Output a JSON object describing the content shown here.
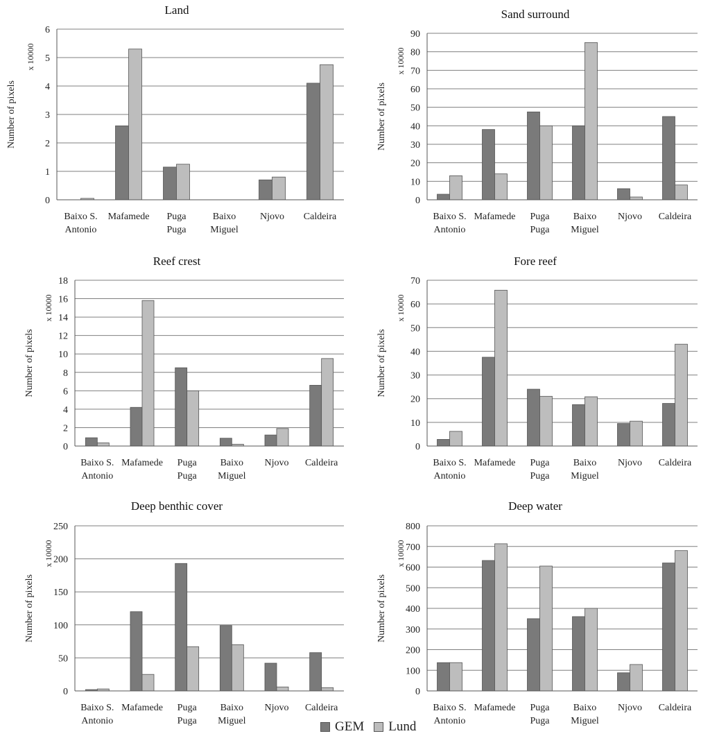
{
  "legend": {
    "gem_label": "GEM",
    "lund_label": "Lund"
  },
  "colors": {
    "gem": "#7a7a7a",
    "lund": "#bdbdbd",
    "grid": "#7f7f7f",
    "axis": "#555555"
  },
  "chart_data": [
    {
      "type": "bar",
      "title": "Land",
      "ylabel": "Number of pixels",
      "multiplier": "x 10000",
      "ylim": [
        0,
        6
      ],
      "yticks": [
        0,
        1,
        2,
        3,
        4,
        5,
        6
      ],
      "categories": [
        "Baixo S.\nAntonio",
        "Mafamede",
        "Puga\nPuga",
        "Baixo\nMiguel",
        "Njovo",
        "Caldeira"
      ],
      "series": [
        {
          "name": "GEM",
          "values": [
            0,
            2.6,
            1.15,
            0,
            0.7,
            4.1
          ]
        },
        {
          "name": "Lund",
          "values": [
            0.05,
            5.3,
            1.25,
            0,
            0.8,
            4.75
          ]
        }
      ]
    },
    {
      "type": "bar",
      "title": "Sand surround",
      "ylabel": "Number of pixels",
      "multiplier": "x 10000",
      "ylim": [
        0,
        90
      ],
      "yticks": [
        0,
        10,
        20,
        30,
        40,
        50,
        60,
        70,
        80,
        90
      ],
      "categories": [
        "Baixo S.\nAntonio",
        "Mafamede",
        "Puga\nPuga",
        "Baixo\nMiguel",
        "Njovo",
        "Caldeira"
      ],
      "series": [
        {
          "name": "GEM",
          "values": [
            3,
            38,
            47.5,
            40,
            6,
            45
          ]
        },
        {
          "name": "Lund",
          "values": [
            13,
            14,
            40,
            85,
            1.5,
            8
          ]
        }
      ]
    },
    {
      "type": "bar",
      "title": "Reef crest",
      "ylabel": "Number of pixels",
      "multiplier": "x 10000",
      "ylim": [
        0,
        18
      ],
      "yticks": [
        0,
        2,
        4,
        6,
        8,
        10,
        12,
        14,
        16,
        18
      ],
      "categories": [
        "Baixo S.\nAntonio",
        "Mafamede",
        "Puga\nPuga",
        "Baixo\nMiguel",
        "Njovo",
        "Caldeira"
      ],
      "series": [
        {
          "name": "GEM",
          "values": [
            0.9,
            4.2,
            8.5,
            0.85,
            1.2,
            6.6
          ]
        },
        {
          "name": "Lund",
          "values": [
            0.35,
            15.8,
            6,
            0.2,
            1.9,
            9.5
          ]
        }
      ]
    },
    {
      "type": "bar",
      "title": "Fore reef",
      "ylabel": "Number of pixels",
      "multiplier": "x 10000",
      "ylim": [
        0,
        70
      ],
      "yticks": [
        0,
        10,
        20,
        30,
        40,
        50,
        60,
        70
      ],
      "categories": [
        "Baixo S.\nAntonio",
        "Mafamede",
        "Puga\nPuga",
        "Baixo\nMiguel",
        "Njovo",
        "Caldeira"
      ],
      "series": [
        {
          "name": "GEM",
          "values": [
            2.8,
            37.5,
            24,
            17.5,
            9.5,
            18
          ]
        },
        {
          "name": "Lund",
          "values": [
            6.2,
            65.8,
            21,
            20.8,
            10.5,
            43
          ]
        }
      ]
    },
    {
      "type": "bar",
      "title": "Deep benthic cover",
      "ylabel": "Number of pixels",
      "multiplier": "x 10000",
      "ylim": [
        0,
        250
      ],
      "yticks": [
        0,
        50,
        100,
        150,
        200,
        250
      ],
      "categories": [
        "Baixo S.\nAntonio",
        "Mafamede",
        "Puga\nPuga",
        "Baixo\nMiguel",
        "Njovo",
        "Caldeira"
      ],
      "series": [
        {
          "name": "GEM",
          "values": [
            2,
            120,
            193,
            99,
            42,
            58
          ]
        },
        {
          "name": "Lund",
          "values": [
            3,
            25,
            67,
            70,
            6,
            5
          ]
        }
      ]
    },
    {
      "type": "bar",
      "title": "Deep water",
      "ylabel": "Number of pixels",
      "multiplier": "x 10000",
      "ylim": [
        0,
        800
      ],
      "yticks": [
        0,
        100,
        200,
        300,
        400,
        500,
        600,
        700,
        800
      ],
      "categories": [
        "Baixo S.\nAntonio",
        "Mafamede",
        "Puga\nPuga",
        "Baixo\nMiguel",
        "Njovo",
        "Caldeira"
      ],
      "series": [
        {
          "name": "GEM",
          "values": [
            137,
            632,
            350,
            360,
            88,
            620
          ]
        },
        {
          "name": "Lund",
          "values": [
            137,
            713,
            605,
            400,
            128,
            680
          ]
        }
      ]
    }
  ]
}
